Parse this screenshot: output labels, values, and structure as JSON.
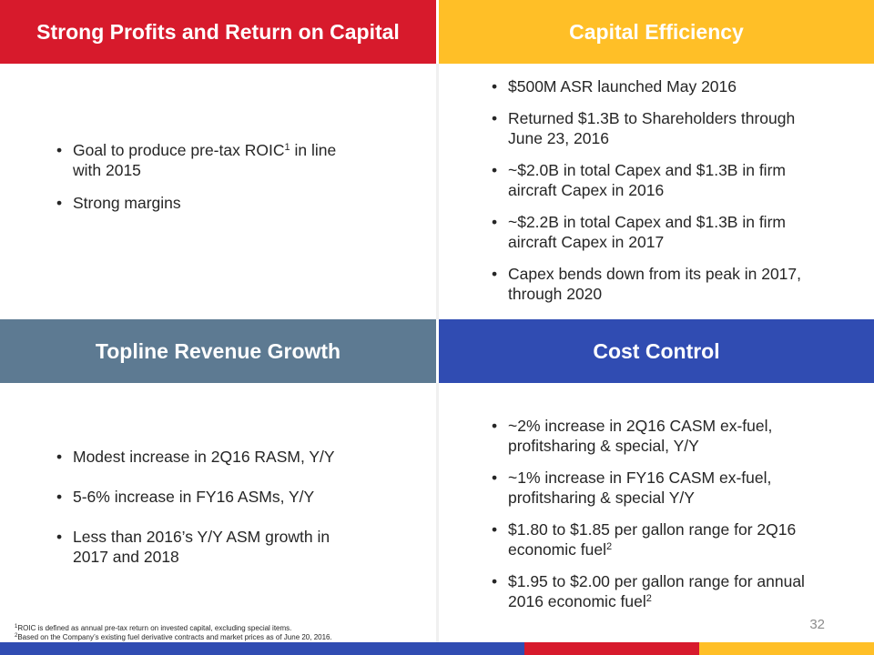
{
  "quadrants": {
    "top_left": {
      "title": "Strong Profits and Return on Capital",
      "bullets": [
        {
          "text": "Goal to produce pre-tax ROIC",
          "sup": "1",
          "after": " in line with 2015"
        },
        {
          "text": "Strong margins"
        }
      ]
    },
    "top_right": {
      "title": "Capital Efficiency",
      "bullets": [
        {
          "text": "$500M ASR launched May 2016"
        },
        {
          "text": "Returned $1.3B to Shareholders through June 23, 2016"
        },
        {
          "text": "~$2.0B in total Capex and $1.3B in firm aircraft Capex in 2016"
        },
        {
          "text": "~$2.2B in total Capex and $1.3B in firm aircraft Capex in 2017"
        },
        {
          "text": "Capex bends down from its peak in 2017, through 2020"
        }
      ]
    },
    "bottom_left": {
      "title": "Topline Revenue Growth",
      "bullets": [
        {
          "text": "Modest increase in 2Q16 RASM, Y/Y"
        },
        {
          "text": "5-6% increase in FY16 ASMs, Y/Y"
        },
        {
          "text": "Less than 2016’s Y/Y ASM growth in 2017 and 2018"
        }
      ]
    },
    "bottom_right": {
      "title": "Cost Control",
      "bullets": [
        {
          "text": "~2% increase in 2Q16 CASM ex-fuel, profitsharing & special, Y/Y"
        },
        {
          "text": "~1% increase in FY16 CASM ex-fuel, profitsharing & special Y/Y"
        },
        {
          "text": "$1.80 to $1.85 per gallon range for 2Q16 economic fuel",
          "sup": "2"
        },
        {
          "text": "$1.95 to $2.00 per gallon range for annual 2016 economic fuel",
          "sup": "2"
        }
      ]
    }
  },
  "footnotes": [
    {
      "sup": "1",
      "text": "ROIC is defined as annual pre-tax return on invested capital, excluding special items."
    },
    {
      "sup": "2",
      "text": "Based on the Company’s existing fuel derivative contracts and market prices as of June 20, 2016."
    }
  ],
  "page_number": "32",
  "colors": {
    "red": "#d71a2c",
    "gold": "#ffbf27",
    "slate": "#5d7a92",
    "blue": "#304cb2"
  }
}
